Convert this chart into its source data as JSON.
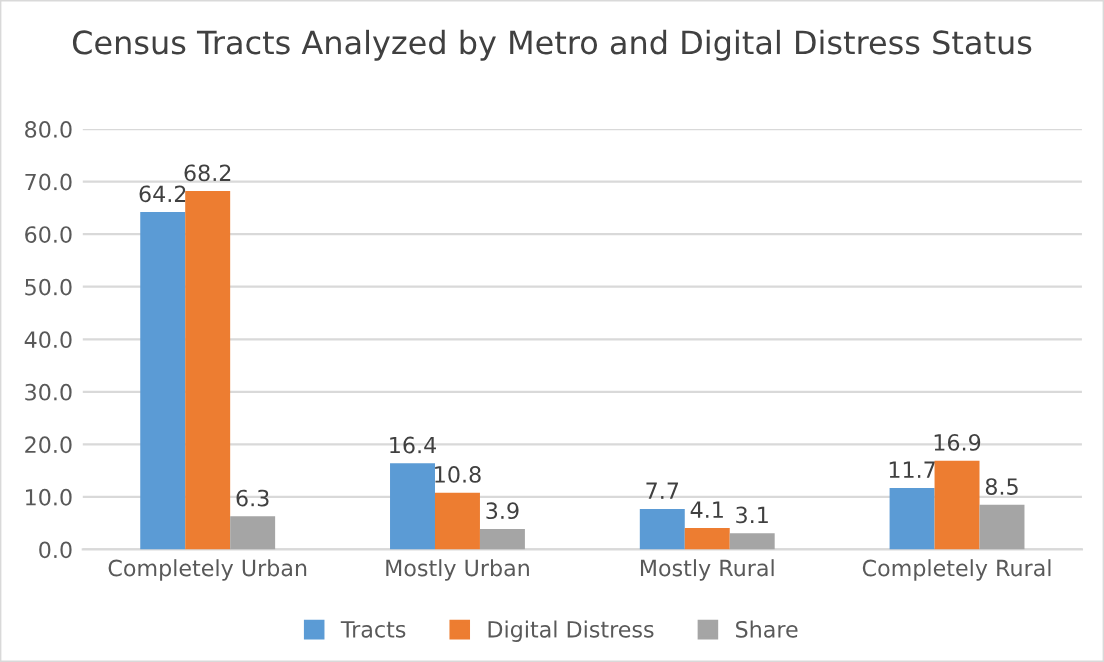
{
  "chart_data": {
    "type": "bar",
    "title": "Census Tracts Analyzed by Metro and Digital Distress Status",
    "categories": [
      "Completely Urban",
      "Mostly Urban",
      "Mostly Rural",
      "Completely Rural"
    ],
    "series": [
      {
        "name": "Tracts",
        "color": "#5b9bd5",
        "values": [
          64.2,
          16.4,
          7.7,
          11.7
        ]
      },
      {
        "name": "Digital Distress",
        "color": "#ed7d31",
        "values": [
          68.2,
          10.8,
          4.1,
          16.9
        ]
      },
      {
        "name": "Share",
        "color": "#a5a5a5",
        "values": [
          6.3,
          3.9,
          3.1,
          8.5
        ]
      }
    ],
    "ylim": [
      0,
      80
    ],
    "yticks": [
      {
        "value": 0,
        "label": "0.0"
      },
      {
        "value": 10,
        "label": "10.0"
      },
      {
        "value": 20,
        "label": "20.0"
      },
      {
        "value": 30,
        "label": "30.0"
      },
      {
        "value": 40,
        "label": "40.0"
      },
      {
        "value": 50,
        "label": "50.0"
      },
      {
        "value": 60,
        "label": "60.0"
      },
      {
        "value": 70,
        "label": "70.0"
      },
      {
        "value": 80,
        "label": "80.0"
      }
    ],
    "grid": "y",
    "legend": "bottom",
    "data_labels": true
  }
}
